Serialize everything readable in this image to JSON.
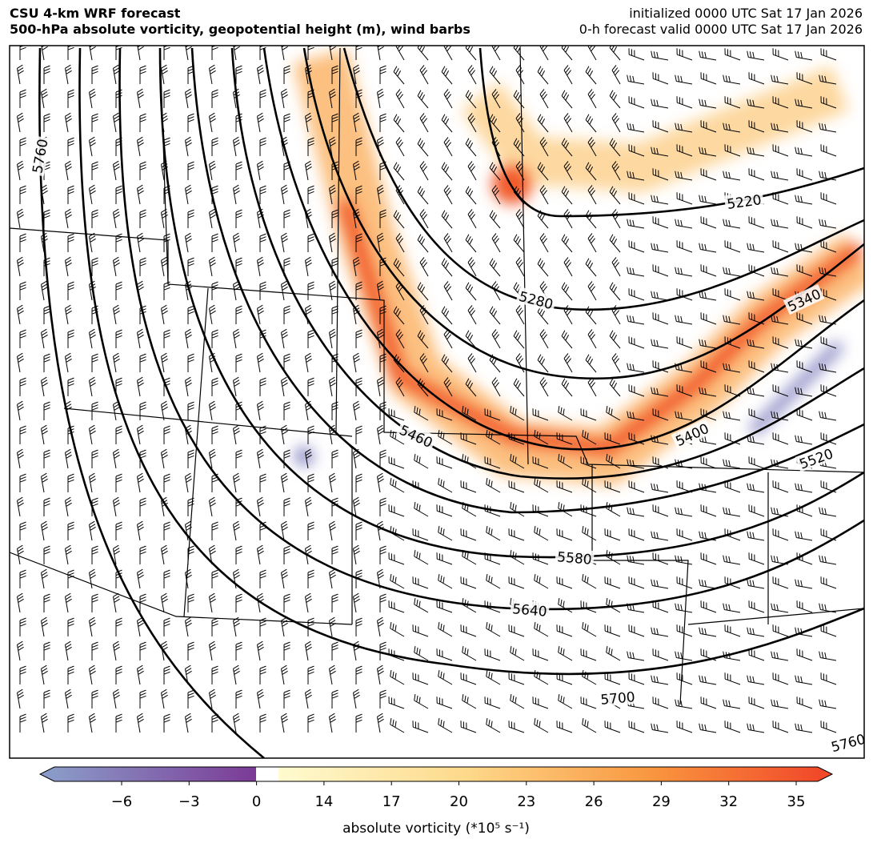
{
  "header": {
    "title_left": [
      "CSU 4-km WRF forecast",
      "500-hPa absolute vorticity, geopotential height (m), wind barbs"
    ],
    "title_right": [
      "initialized 0000 UTC Sat 17 Jan 2026",
      "0-h forecast valid 0000 UTC Sat 17 Jan 2026"
    ]
  },
  "map": {
    "contour_labels": [
      "5760",
      "5220",
      "5280",
      "5340",
      "5400",
      "5460",
      "5520",
      "5580",
      "5640",
      "5700",
      "5760"
    ]
  },
  "colorbar": {
    "ticks": [
      "−6",
      "−3",
      "0",
      "14",
      "17",
      "20",
      "23",
      "26",
      "29",
      "32",
      "35"
    ],
    "label": "absolute vorticity (*10⁵ s⁻¹)"
  }
}
